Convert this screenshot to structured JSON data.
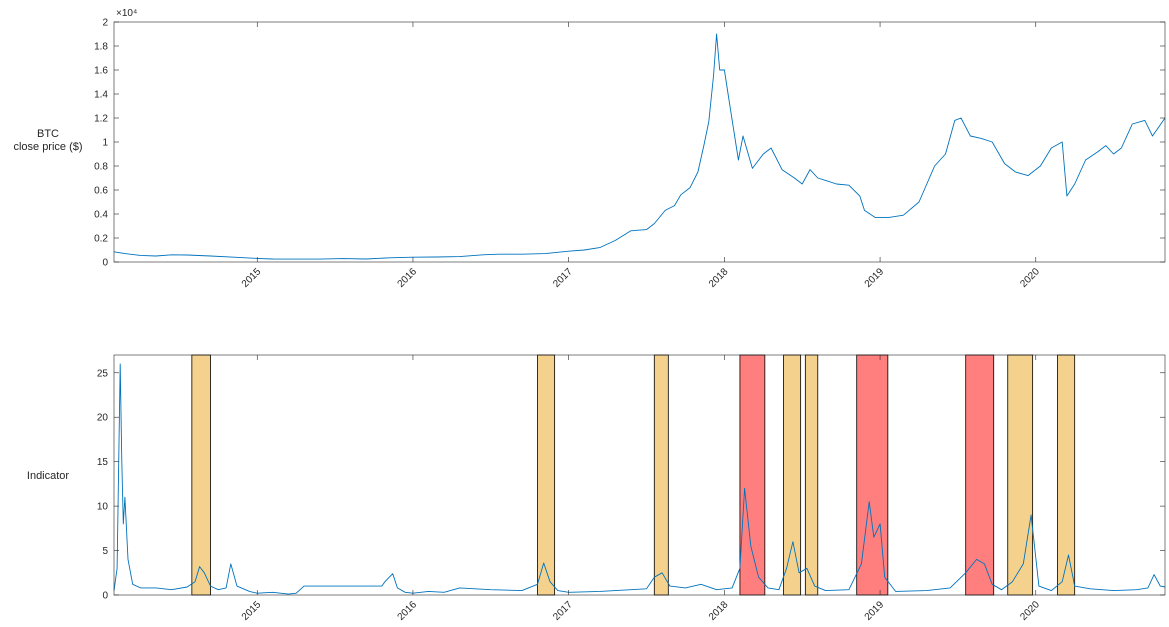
{
  "chart_data": [
    {
      "type": "line",
      "ylabel": [
        "BTC",
        "close price ($)"
      ],
      "exponent_label": "×10⁴",
      "yticks": [
        "0",
        "0.2",
        "0.4",
        "0.6",
        "0.8",
        "1",
        "1.2",
        "1.4",
        "1.6",
        "1.8",
        "2"
      ],
      "xticks": [
        "2015",
        "2016",
        "2017",
        "2018",
        "2019",
        "2020"
      ],
      "ylim": [
        0,
        2
      ],
      "xlim": [
        2014.08,
        2020.83
      ],
      "line_color": "#0072bd",
      "series": [
        {
          "x": [
            2014.08,
            2014.15,
            2014.25,
            2014.35,
            2014.45,
            2014.55,
            2014.7,
            2014.85,
            2015.0,
            2015.1,
            2015.25,
            2015.4,
            2015.55,
            2015.7,
            2015.85,
            2016.0,
            2016.15,
            2016.3,
            2016.45,
            2016.55,
            2016.7,
            2016.85,
            2017.0,
            2017.1,
            2017.2,
            2017.3,
            2017.4,
            2017.5,
            2017.55,
            2017.62,
            2017.68,
            2017.72,
            2017.78,
            2017.83,
            2017.87,
            2017.9,
            2017.93,
            2017.95,
            2017.97,
            2018.0,
            2018.03,
            2018.06,
            2018.09,
            2018.12,
            2018.18,
            2018.25,
            2018.3,
            2018.37,
            2018.45,
            2018.5,
            2018.55,
            2018.6,
            2018.65,
            2018.72,
            2018.8,
            2018.87,
            2018.9,
            2018.97,
            2019.05,
            2019.15,
            2019.25,
            2019.35,
            2019.42,
            2019.48,
            2019.52,
            2019.58,
            2019.65,
            2019.72,
            2019.8,
            2019.87,
            2019.95,
            2020.03,
            2020.1,
            2020.17,
            2020.2,
            2020.25,
            2020.32,
            2020.4,
            2020.45,
            2020.5,
            2020.55,
            2020.62,
            2020.7,
            2020.75,
            2020.83
          ],
          "y": [
            0.085,
            0.07,
            0.055,
            0.05,
            0.06,
            0.058,
            0.05,
            0.04,
            0.03,
            0.025,
            0.024,
            0.024,
            0.028,
            0.025,
            0.035,
            0.04,
            0.042,
            0.045,
            0.06,
            0.065,
            0.065,
            0.07,
            0.09,
            0.1,
            0.12,
            0.18,
            0.26,
            0.27,
            0.32,
            0.43,
            0.47,
            0.56,
            0.62,
            0.75,
            0.98,
            1.17,
            1.55,
            1.9,
            1.6,
            1.6,
            1.35,
            1.1,
            0.85,
            1.05,
            0.78,
            0.9,
            0.95,
            0.77,
            0.7,
            0.65,
            0.77,
            0.7,
            0.68,
            0.65,
            0.64,
            0.55,
            0.43,
            0.37,
            0.37,
            0.39,
            0.5,
            0.8,
            0.9,
            1.18,
            1.2,
            1.05,
            1.03,
            1.0,
            0.82,
            0.75,
            0.72,
            0.8,
            0.95,
            1.0,
            0.55,
            0.65,
            0.85,
            0.92,
            0.97,
            0.9,
            0.95,
            1.15,
            1.18,
            1.05,
            1.2
          ]
        }
      ]
    },
    {
      "type": "line",
      "ylabel": "Indicator",
      "yticks": [
        "0",
        "5",
        "10",
        "15",
        "20",
        "25"
      ],
      "xticks": [
        "2015",
        "2016",
        "2017",
        "2018",
        "2019",
        "2020"
      ],
      "ylim": [
        0,
        27
      ],
      "xlim": [
        2014.08,
        2020.83
      ],
      "line_color": "#0072bd",
      "regions": [
        {
          "x0": 2014.58,
          "x1": 2014.7,
          "color": "#f4d28e"
        },
        {
          "x0": 2016.8,
          "x1": 2016.91,
          "color": "#f4d28e"
        },
        {
          "x0": 2017.55,
          "x1": 2017.64,
          "color": "#f4d28e"
        },
        {
          "x0": 2018.1,
          "x1": 2018.26,
          "color": "#ff7f7f"
        },
        {
          "x0": 2018.38,
          "x1": 2018.49,
          "color": "#f4d28e"
        },
        {
          "x0": 2018.52,
          "x1": 2018.6,
          "color": "#f4d28e"
        },
        {
          "x0": 2018.85,
          "x1": 2019.05,
          "color": "#ff7f7f"
        },
        {
          "x0": 2019.55,
          "x1": 2019.73,
          "color": "#ff7f7f"
        },
        {
          "x0": 2019.82,
          "x1": 2019.98,
          "color": "#f4d28e"
        },
        {
          "x0": 2020.14,
          "x1": 2020.25,
          "color": "#f4d28e"
        }
      ],
      "series": [
        {
          "x": [
            2014.08,
            2014.1,
            2014.12,
            2014.13,
            2014.14,
            2014.15,
            2014.17,
            2014.2,
            2014.25,
            2014.35,
            2014.45,
            2014.55,
            2014.6,
            2014.63,
            2014.66,
            2014.7,
            2014.75,
            2014.8,
            2014.83,
            2014.87,
            2014.95,
            2015.0,
            2015.1,
            2015.2,
            2015.25,
            2015.3,
            2015.8,
            2015.82,
            2015.87,
            2015.9,
            2015.95,
            2016.0,
            2016.1,
            2016.2,
            2016.3,
            2016.5,
            2016.7,
            2016.8,
            2016.84,
            2016.88,
            2016.93,
            2017.0,
            2017.2,
            2017.4,
            2017.5,
            2017.55,
            2017.6,
            2017.65,
            2017.75,
            2017.85,
            2017.95,
            2018.05,
            2018.1,
            2018.13,
            2018.17,
            2018.22,
            2018.28,
            2018.35,
            2018.4,
            2018.44,
            2018.48,
            2018.53,
            2018.58,
            2018.65,
            2018.8,
            2018.88,
            2018.93,
            2018.96,
            2019.0,
            2019.03,
            2019.1,
            2019.3,
            2019.45,
            2019.55,
            2019.62,
            2019.67,
            2019.72,
            2019.78,
            2019.85,
            2019.92,
            2019.97,
            2020.02,
            2020.1,
            2020.17,
            2020.21,
            2020.25,
            2020.35,
            2020.5,
            2020.65,
            2020.72,
            2020.76,
            2020.8,
            2020.83
          ],
          "y": [
            0.5,
            3.0,
            26,
            15,
            8,
            11,
            4,
            1.2,
            0.8,
            0.8,
            0.6,
            0.9,
            1.5,
            3.2,
            2.5,
            1.0,
            0.6,
            0.8,
            3.5,
            1.0,
            0.4,
            0.2,
            0.3,
            0.1,
            0.2,
            1.0,
            1.0,
            1.5,
            2.4,
            0.8,
            0.3,
            0.2,
            0.4,
            0.3,
            0.8,
            0.6,
            0.5,
            1.2,
            3.6,
            1.5,
            0.5,
            0.3,
            0.4,
            0.6,
            0.7,
            2.0,
            2.5,
            1.0,
            0.8,
            1.2,
            0.6,
            0.8,
            3.0,
            12.0,
            5.5,
            2.0,
            0.8,
            0.6,
            3.0,
            6.0,
            2.5,
            3.0,
            1.0,
            0.5,
            0.6,
            3.5,
            10.5,
            6.5,
            8.0,
            2.0,
            0.4,
            0.5,
            0.8,
            2.5,
            4.0,
            3.5,
            1.2,
            0.6,
            1.5,
            3.5,
            9.0,
            1.0,
            0.5,
            1.5,
            4.5,
            1.0,
            0.7,
            0.5,
            0.6,
            0.8,
            2.3,
            1.0,
            0.9
          ]
        }
      ]
    }
  ]
}
